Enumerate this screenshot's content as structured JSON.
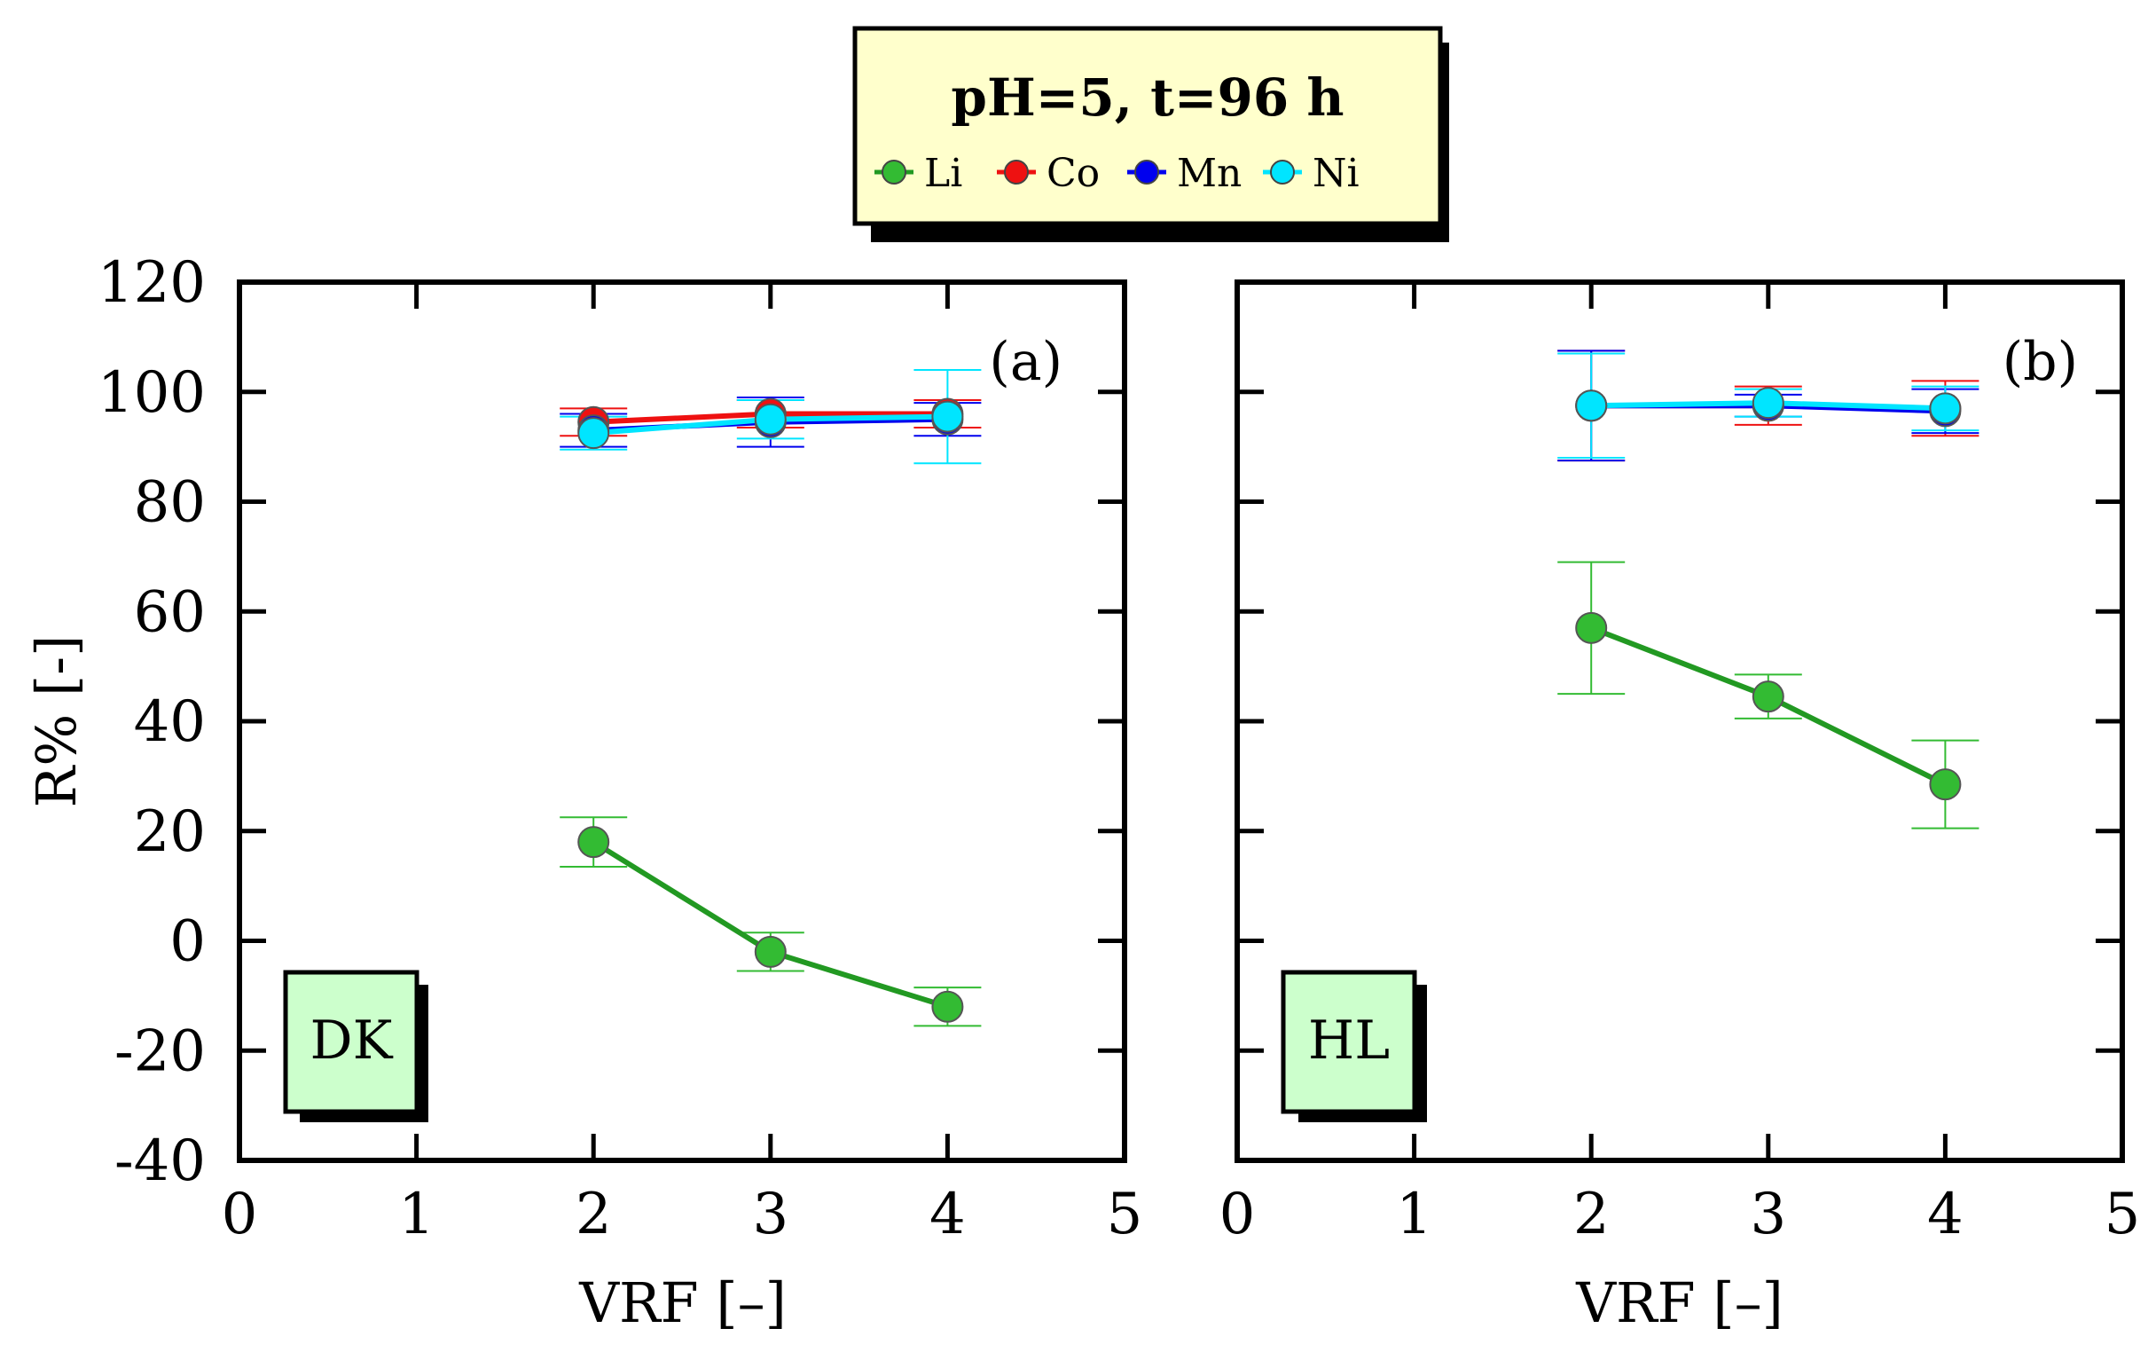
{
  "legend": {
    "title": "pH=5, t=96 h",
    "entries": [
      {
        "name": "Li",
        "color": "#33bb33"
      },
      {
        "name": "Co",
        "color": "#ee1111"
      },
      {
        "name": "Mn",
        "color": "#0000ee"
      },
      {
        "name": "Ni",
        "color": "#00e5ff"
      }
    ]
  },
  "colors": {
    "legend_bg": "#ffffcc",
    "label_box_bg": "#ccffcc",
    "Li_line": "#229922",
    "Li_marker": "#33bb33"
  },
  "chart_data": [
    {
      "type": "line",
      "panel_tag": "(a)",
      "box_label": "DK",
      "xlabel": "VRF [–]",
      "ylabel": "R% [-]",
      "xlim": [
        0,
        5
      ],
      "ylim": [
        -40,
        120
      ],
      "xticks": [
        "0",
        "1",
        "2",
        "3",
        "4",
        "5"
      ],
      "yticks": [
        "-40",
        "-20",
        "0",
        "20",
        "40",
        "60",
        "80",
        "100",
        "120"
      ],
      "x": [
        2,
        3,
        4
      ],
      "series": [
        {
          "name": "Li",
          "values": [
            18,
            -2,
            -12
          ],
          "errors": [
            4.5,
            3.5,
            3.5
          ]
        },
        {
          "name": "Co",
          "values": [
            94.5,
            96,
            96
          ],
          "errors": [
            2.5,
            2.5,
            2.5
          ]
        },
        {
          "name": "Mn",
          "values": [
            93,
            94.5,
            95
          ],
          "errors": [
            3,
            4.5,
            3
          ]
        },
        {
          "name": "Ni",
          "values": [
            92.5,
            95,
            95.5
          ],
          "errors": [
            3,
            3.5,
            8.5
          ]
        }
      ]
    },
    {
      "type": "line",
      "panel_tag": "(b)",
      "box_label": "HL",
      "xlabel": "VRF [–]",
      "ylabel": "",
      "xlim": [
        0,
        5
      ],
      "ylim": [
        -40,
        120
      ],
      "xticks": [
        "0",
        "1",
        "2",
        "3",
        "4",
        "5"
      ],
      "yticks": [],
      "x": [
        2,
        3,
        4
      ],
      "series": [
        {
          "name": "Li",
          "values": [
            57,
            44.5,
            28.5
          ],
          "errors": [
            12,
            4,
            8
          ]
        },
        {
          "name": "Co",
          "values": [
            97.5,
            97.5,
            97
          ],
          "errors": [
            10,
            3.5,
            5
          ]
        },
        {
          "name": "Mn",
          "values": [
            97.5,
            97.5,
            96.5
          ],
          "errors": [
            10,
            2,
            4
          ]
        },
        {
          "name": "Ni",
          "values": [
            97.5,
            98,
            97
          ],
          "errors": [
            9.5,
            2.5,
            4
          ]
        }
      ]
    }
  ]
}
